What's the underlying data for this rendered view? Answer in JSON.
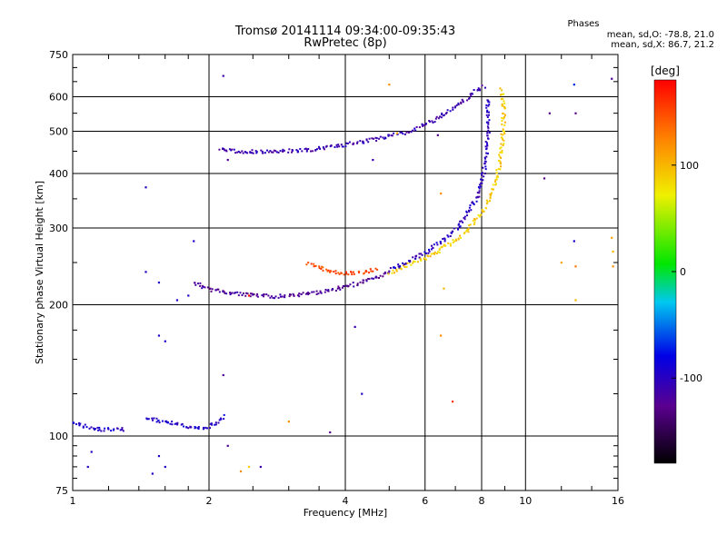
{
  "header": {
    "title_line1": "Tromsø 20141114 09:34:00-09:35:43",
    "title_line2": "RwPretec (8p)"
  },
  "stats": {
    "heading": "Phases",
    "line1": "mean, sd,O: -78.8, 21.0",
    "line2": "mean, sd,X: 86.7, 21.2"
  },
  "colorbar": {
    "unit": "[deg]",
    "tick_labels": [
      "100",
      "0",
      "-100"
    ],
    "ticks": [
      100,
      0,
      -100
    ],
    "range": [
      -180,
      180
    ]
  },
  "chart_data": {
    "type": "scatter",
    "xlabel": "Frequency [MHz]",
    "ylabel": "Stationary phase Virtual Height [km]",
    "xscale": "log",
    "yscale": "log",
    "xlim": [
      1,
      16
    ],
    "ylim": [
      75,
      750
    ],
    "x_ticks": [
      1,
      2,
      4,
      6,
      8,
      10,
      16
    ],
    "x_tick_labels": [
      "1",
      "2",
      "4",
      "6",
      "8",
      "10",
      "16"
    ],
    "y_ticks": [
      75,
      100,
      200,
      300,
      400,
      500,
      600,
      750
    ],
    "y_tick_labels": [
      "75",
      "100",
      "200",
      "300",
      "400",
      "500",
      "600",
      "750"
    ],
    "grid": true,
    "color_encoding": "phase [deg]",
    "traces": [
      {
        "x": [
          1.85,
          2.0,
          2.2,
          2.5,
          2.8,
          3.2,
          3.6,
          4.0,
          4.5,
          5.0
        ],
        "y": [
          226,
          218,
          214,
          211,
          210,
          212,
          216,
          221,
          229,
          238
        ],
        "phase": -120
      },
      {
        "x": [
          5.0,
          5.6,
          6.2,
          6.8,
          7.4,
          7.9,
          8.3,
          8.6,
          8.75,
          8.85,
          8.9,
          8.9,
          8.85,
          8.8
        ],
        "y": [
          238,
          250,
          262,
          278,
          297,
          322,
          352,
          392,
          430,
          470,
          520,
          570,
          610,
          630
        ],
        "phase": 90
      },
      {
        "x": [
          5.0,
          5.5,
          6.0,
          6.5,
          7.0,
          7.5,
          7.8,
          8.0,
          8.15,
          8.2,
          8.25,
          8.2
        ],
        "y": [
          242,
          253,
          265,
          281,
          300,
          330,
          358,
          392,
          430,
          480,
          540,
          600
        ],
        "phase": -100
      },
      {
        "x": [
          2.1,
          2.3,
          2.6,
          2.9,
          3.3,
          3.7,
          4.1,
          4.5,
          5.0,
          5.5,
          6.0,
          6.5,
          7.0,
          7.4,
          7.8,
          8.1
        ],
        "y": [
          455,
          452,
          450,
          452,
          455,
          462,
          470,
          478,
          490,
          500,
          520,
          545,
          575,
          600,
          625,
          640
        ],
        "phase": -110
      },
      {
        "x": [
          3.3,
          3.5,
          3.7,
          3.9,
          4.1,
          4.3,
          4.5,
          4.7
        ],
        "y": [
          250,
          244,
          240,
          238,
          238,
          238,
          240,
          243
        ],
        "phase": 150
      },
      {
        "x": [
          1.45,
          1.55,
          1.65,
          1.75,
          1.85,
          1.95,
          2.05,
          2.15
        ],
        "y": [
          110,
          109,
          108,
          106,
          105,
          105,
          107,
          112
        ],
        "phase": -95
      },
      {
        "x": [
          1.0,
          1.05,
          1.1,
          1.15,
          1.2,
          1.3
        ],
        "y": [
          108,
          106,
          105,
          104,
          104,
          104
        ],
        "phase": -95
      }
    ],
    "points": [
      {
        "x": 1.45,
        "y": 372,
        "phase": -95
      },
      {
        "x": 1.45,
        "y": 238,
        "phase": -95
      },
      {
        "x": 1.55,
        "y": 225,
        "phase": -95
      },
      {
        "x": 1.6,
        "y": 165,
        "phase": -95
      },
      {
        "x": 1.55,
        "y": 170,
        "phase": -95
      },
      {
        "x": 1.85,
        "y": 280,
        "phase": -95
      },
      {
        "x": 1.8,
        "y": 210,
        "phase": -95
      },
      {
        "x": 1.7,
        "y": 205,
        "phase": -95
      },
      {
        "x": 2.15,
        "y": 670,
        "phase": -110
      },
      {
        "x": 2.2,
        "y": 430,
        "phase": -120
      },
      {
        "x": 2.15,
        "y": 138,
        "phase": -120
      },
      {
        "x": 2.2,
        "y": 95,
        "phase": -120
      },
      {
        "x": 2.45,
        "y": 210,
        "phase": 170
      },
      {
        "x": 2.35,
        "y": 83,
        "phase": 120
      },
      {
        "x": 2.45,
        "y": 85,
        "phase": 90
      },
      {
        "x": 2.6,
        "y": 85,
        "phase": -110
      },
      {
        "x": 3.0,
        "y": 108,
        "phase": 120
      },
      {
        "x": 3.7,
        "y": 102,
        "phase": -130
      },
      {
        "x": 4.2,
        "y": 178,
        "phase": -110
      },
      {
        "x": 4.35,
        "y": 125,
        "phase": -100
      },
      {
        "x": 4.6,
        "y": 430,
        "phase": -110
      },
      {
        "x": 5.2,
        "y": 495,
        "phase": 100
      },
      {
        "x": 5.0,
        "y": 640,
        "phase": 120
      },
      {
        "x": 6.4,
        "y": 490,
        "phase": -130
      },
      {
        "x": 6.5,
        "y": 360,
        "phase": 120
      },
      {
        "x": 6.5,
        "y": 170,
        "phase": 120
      },
      {
        "x": 6.9,
        "y": 120,
        "phase": 160
      },
      {
        "x": 6.6,
        "y": 218,
        "phase": 100
      },
      {
        "x": 11.0,
        "y": 390,
        "phase": -130
      },
      {
        "x": 11.3,
        "y": 550,
        "phase": -130
      },
      {
        "x": 12.9,
        "y": 550,
        "phase": -130
      },
      {
        "x": 12.8,
        "y": 640,
        "phase": -70
      },
      {
        "x": 12.8,
        "y": 280,
        "phase": -90
      },
      {
        "x": 12.9,
        "y": 245,
        "phase": 130
      },
      {
        "x": 12.9,
        "y": 205,
        "phase": 100
      },
      {
        "x": 15.5,
        "y": 660,
        "phase": -120
      },
      {
        "x": 15.5,
        "y": 285,
        "phase": 110
      },
      {
        "x": 15.6,
        "y": 265,
        "phase": 100
      },
      {
        "x": 15.6,
        "y": 245,
        "phase": 120
      },
      {
        "x": 12.0,
        "y": 250,
        "phase": 110
      },
      {
        "x": 1.1,
        "y": 92,
        "phase": -100
      },
      {
        "x": 1.08,
        "y": 85,
        "phase": -95
      },
      {
        "x": 1.5,
        "y": 82,
        "phase": -95
      },
      {
        "x": 1.55,
        "y": 90,
        "phase": -95
      },
      {
        "x": 1.6,
        "y": 85,
        "phase": -95
      }
    ]
  }
}
